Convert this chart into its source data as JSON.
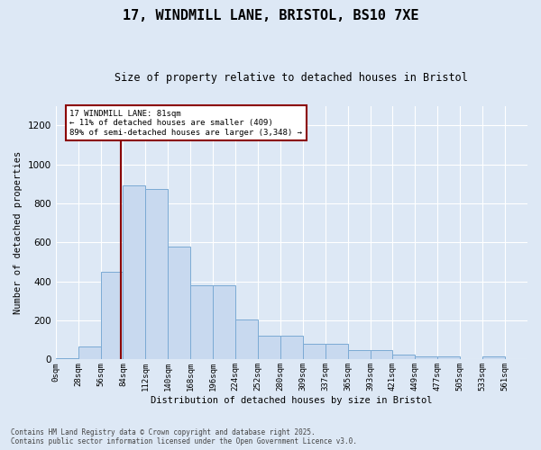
{
  "title_line1": "17, WINDMILL LANE, BRISTOL, BS10 7XE",
  "title_line2": "Size of property relative to detached houses in Bristol",
  "xlabel": "Distribution of detached houses by size in Bristol",
  "ylabel": "Number of detached properties",
  "bar_labels": [
    "0sqm",
    "28sqm",
    "56sqm",
    "84sqm",
    "112sqm",
    "140sqm",
    "168sqm",
    "196sqm",
    "224sqm",
    "252sqm",
    "280sqm",
    "309sqm",
    "337sqm",
    "365sqm",
    "393sqm",
    "421sqm",
    "449sqm",
    "477sqm",
    "505sqm",
    "533sqm",
    "561sqm"
  ],
  "bar_values": [
    5,
    65,
    450,
    895,
    875,
    580,
    380,
    380,
    205,
    120,
    120,
    82,
    82,
    50,
    50,
    25,
    18,
    15,
    0,
    18,
    0
  ],
  "bar_color": "#c8d9ef",
  "bar_edge_color": "#7baad4",
  "background_color": "#dde8f5",
  "grid_color": "#ffffff",
  "annotation_text": "17 WINDMILL LANE: 81sqm\n← 11% of detached houses are smaller (409)\n89% of semi-detached houses are larger (3,348) →",
  "vline_x_bin": 2,
  "vline_x_offset": 25,
  "ylim": [
    0,
    1300
  ],
  "yticks": [
    0,
    200,
    400,
    600,
    800,
    1000,
    1200
  ],
  "footer_line1": "Contains HM Land Registry data © Crown copyright and database right 2025.",
  "footer_line2": "Contains public sector information licensed under the Open Government Licence v3.0."
}
